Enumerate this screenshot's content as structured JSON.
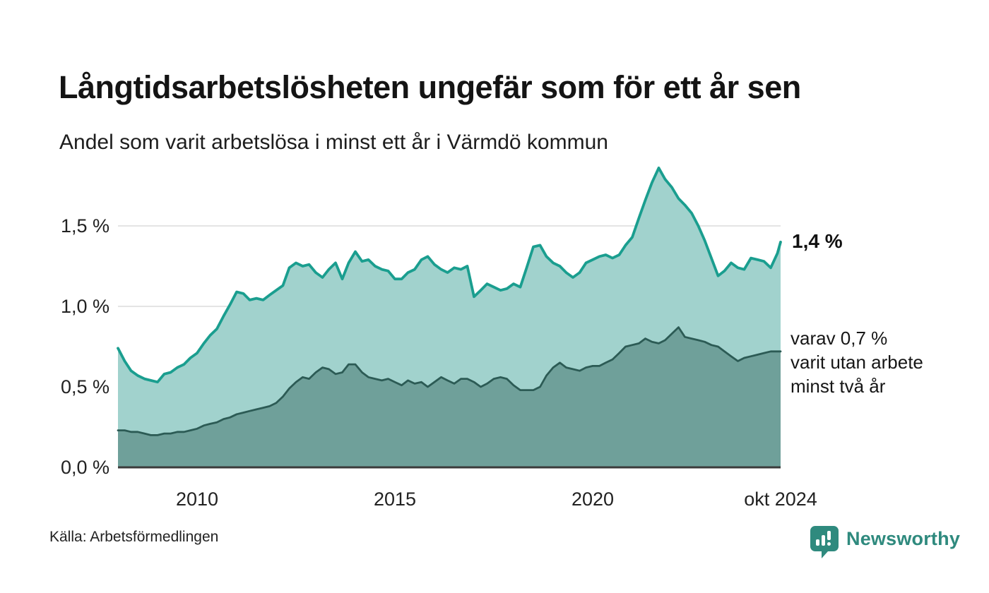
{
  "header": {
    "title": "Långtidsarbetslösheten ungefär som för ett år sen",
    "subtitle": "Andel som varit arbetslösa i minst ett år i Värmdö kommun"
  },
  "chart": {
    "y_ticks": [
      "1,5 %",
      "1,0 %",
      "0,5 %",
      "0,0 %"
    ],
    "x_ticks": [
      "2010",
      "2015",
      "2020",
      "okt 2024"
    ],
    "end_label_total": "1,4 %",
    "annotation_two_years": "varav 0,7 %\nvarit utan arbete\nminst två år"
  },
  "footer": {
    "source": "Källa: Arbetsförmedlingen",
    "brand": "Newsworthy"
  },
  "colors": {
    "line_total": "#1A9E8F",
    "fill_total": "#A1D2CD",
    "line_two_years": "#2C5B55",
    "fill_two_years": "#6FA09A",
    "grid": "#DBDBDB",
    "axis": "#3B3B3B",
    "brand_teal": "#2F8A7E"
  },
  "chart_data": {
    "type": "area",
    "title": "Långtidsarbetslösheten ungefär som för ett år sen",
    "subtitle": "Andel som varit arbetslösa i minst ett år i Värmdö kommun",
    "unit": "%",
    "ylim": [
      0,
      1.95
    ],
    "yticks": [
      0,
      0.5,
      1.0,
      1.5
    ],
    "ytick_labels": [
      "0,0 %",
      "0,5 %",
      "1,0 %",
      "1,5 %"
    ],
    "xtick_positions": [
      2010,
      2015,
      2020,
      2024.75
    ],
    "xtick_labels": [
      "2010",
      "2015",
      "2020",
      "okt 2024"
    ],
    "grid": true,
    "legend_position": "right-annotations",
    "end_labels": [
      "1,4 %",
      "varav 0,7 % varit utan arbete minst två år"
    ],
    "x": [
      2008.0,
      2008.17,
      2008.33,
      2008.5,
      2008.67,
      2008.83,
      2009.0,
      2009.17,
      2009.33,
      2009.5,
      2009.67,
      2009.83,
      2010.0,
      2010.17,
      2010.33,
      2010.5,
      2010.67,
      2010.83,
      2011.0,
      2011.17,
      2011.33,
      2011.5,
      2011.67,
      2011.83,
      2012.0,
      2012.17,
      2012.33,
      2012.5,
      2012.67,
      2012.83,
      2013.0,
      2013.17,
      2013.33,
      2013.5,
      2013.67,
      2013.83,
      2014.0,
      2014.17,
      2014.33,
      2014.5,
      2014.67,
      2014.83,
      2015.0,
      2015.17,
      2015.33,
      2015.5,
      2015.67,
      2015.83,
      2016.0,
      2016.17,
      2016.33,
      2016.5,
      2016.67,
      2016.83,
      2017.0,
      2017.17,
      2017.33,
      2017.5,
      2017.67,
      2017.83,
      2018.0,
      2018.17,
      2018.33,
      2018.5,
      2018.67,
      2018.83,
      2019.0,
      2019.17,
      2019.33,
      2019.5,
      2019.67,
      2019.83,
      2020.0,
      2020.17,
      2020.33,
      2020.5,
      2020.67,
      2020.83,
      2021.0,
      2021.17,
      2021.33,
      2021.5,
      2021.67,
      2021.83,
      2022.0,
      2022.17,
      2022.33,
      2022.5,
      2022.67,
      2022.83,
      2023.0,
      2023.17,
      2023.33,
      2023.5,
      2023.67,
      2023.83,
      2024.0,
      2024.17,
      2024.33,
      2024.5,
      2024.67,
      2024.75
    ],
    "series": [
      {
        "name": "Andel arbetslösa minst ett år",
        "values": [
          0.74,
          0.66,
          0.6,
          0.57,
          0.55,
          0.54,
          0.53,
          0.58,
          0.59,
          0.62,
          0.64,
          0.68,
          0.71,
          0.77,
          0.82,
          0.86,
          0.94,
          1.01,
          1.09,
          1.08,
          1.04,
          1.05,
          1.04,
          1.07,
          1.1,
          1.13,
          1.24,
          1.27,
          1.25,
          1.26,
          1.21,
          1.18,
          1.23,
          1.27,
          1.17,
          1.27,
          1.34,
          1.28,
          1.29,
          1.25,
          1.23,
          1.22,
          1.17,
          1.17,
          1.21,
          1.23,
          1.29,
          1.31,
          1.26,
          1.23,
          1.21,
          1.24,
          1.23,
          1.25,
          1.06,
          1.1,
          1.14,
          1.12,
          1.1,
          1.11,
          1.14,
          1.12,
          1.24,
          1.37,
          1.38,
          1.31,
          1.27,
          1.25,
          1.21,
          1.18,
          1.21,
          1.27,
          1.29,
          1.31,
          1.32,
          1.3,
          1.32,
          1.38,
          1.43,
          1.55,
          1.66,
          1.77,
          1.86,
          1.79,
          1.74,
          1.67,
          1.63,
          1.58,
          1.5,
          1.41,
          1.3,
          1.19,
          1.22,
          1.27,
          1.24,
          1.23,
          1.3,
          1.29,
          1.28,
          1.24,
          1.33,
          1.4
        ]
      },
      {
        "name": "varav utan arbete minst två år",
        "values": [
          0.23,
          0.23,
          0.22,
          0.22,
          0.21,
          0.2,
          0.2,
          0.21,
          0.21,
          0.22,
          0.22,
          0.23,
          0.24,
          0.26,
          0.27,
          0.28,
          0.3,
          0.31,
          0.33,
          0.34,
          0.35,
          0.36,
          0.37,
          0.38,
          0.4,
          0.44,
          0.49,
          0.53,
          0.56,
          0.55,
          0.59,
          0.62,
          0.61,
          0.58,
          0.59,
          0.64,
          0.64,
          0.59,
          0.56,
          0.55,
          0.54,
          0.55,
          0.53,
          0.51,
          0.54,
          0.52,
          0.53,
          0.5,
          0.53,
          0.56,
          0.54,
          0.52,
          0.55,
          0.55,
          0.53,
          0.5,
          0.52,
          0.55,
          0.56,
          0.55,
          0.51,
          0.48,
          0.48,
          0.48,
          0.5,
          0.57,
          0.62,
          0.65,
          0.62,
          0.61,
          0.6,
          0.62,
          0.63,
          0.63,
          0.65,
          0.67,
          0.71,
          0.75,
          0.76,
          0.77,
          0.8,
          0.78,
          0.77,
          0.79,
          0.83,
          0.87,
          0.81,
          0.8,
          0.79,
          0.78,
          0.76,
          0.75,
          0.72,
          0.69,
          0.66,
          0.68,
          0.69,
          0.7,
          0.71,
          0.72,
          0.72,
          0.72
        ]
      }
    ]
  }
}
